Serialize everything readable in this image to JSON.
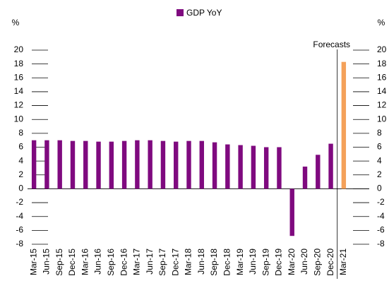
{
  "chart_data": {
    "type": "bar",
    "categories": [
      "Mar-15",
      "Jun-15",
      "Sep-15",
      "Dec-15",
      "Mar-16",
      "Jun-16",
      "Sep-16",
      "Dec-16",
      "Mar-17",
      "Jun-17",
      "Sep-17",
      "Dec-17",
      "Mar-18",
      "Jun-18",
      "Sep-18",
      "Dec-18",
      "Mar-19",
      "Jun-19",
      "Sep-19",
      "Dec-19",
      "Mar-20",
      "Jun-20",
      "Sep-20",
      "Dec-20",
      "Mar-21"
    ],
    "series": [
      {
        "name": "GDP YoY",
        "color": "#7f0a7f",
        "values": [
          7.0,
          7.0,
          7.0,
          6.9,
          6.9,
          6.8,
          6.8,
          6.9,
          7.0,
          7.0,
          6.9,
          6.8,
          6.9,
          6.9,
          6.7,
          6.4,
          6.3,
          6.2,
          6.0,
          6.0,
          -6.8,
          3.2,
          4.9,
          6.5,
          18.3
        ]
      }
    ],
    "forecast_color": "#f4a15a",
    "annotation": {
      "text": "Forecasts",
      "category_index": 24
    },
    "ylabel": "%",
    "y2label": "%",
    "ylim": [
      -8,
      20
    ],
    "yticks": [
      -8,
      -6,
      -4,
      -2,
      0,
      2,
      4,
      6,
      8,
      10,
      12,
      14,
      16,
      18,
      20
    ],
    "y2lim": [
      -8,
      20
    ],
    "y2ticks": [
      -8,
      -6,
      -4,
      -2,
      0,
      2,
      4,
      6,
      8,
      10,
      12,
      14,
      16,
      18,
      20
    ],
    "legend": "top"
  }
}
